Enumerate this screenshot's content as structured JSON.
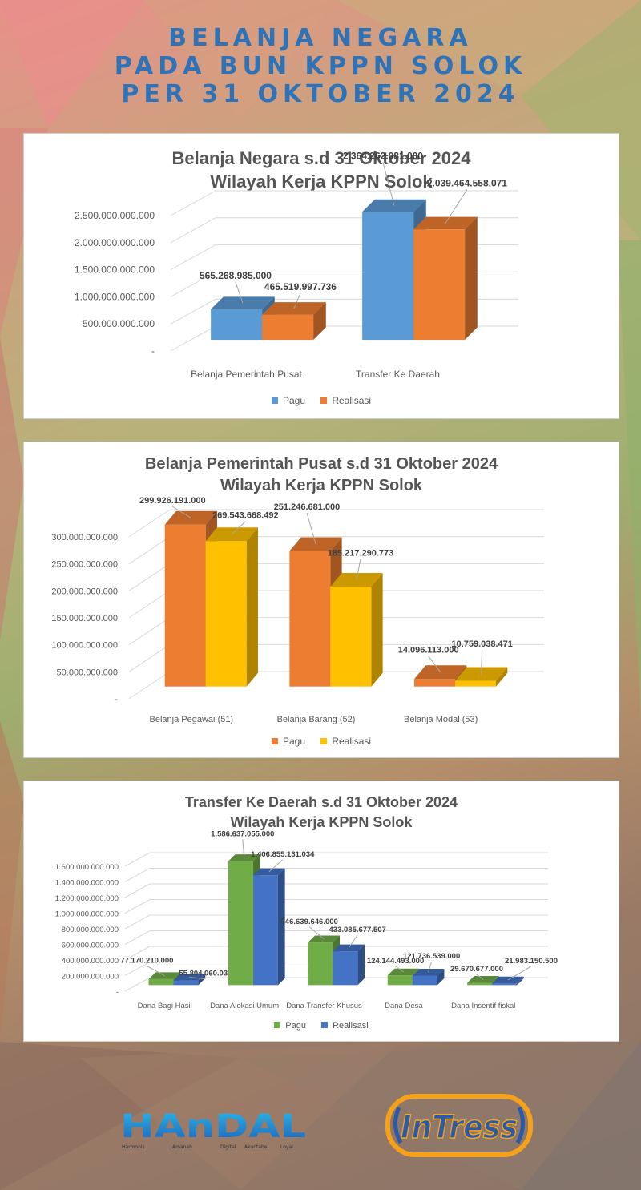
{
  "header": {
    "line1": "BELANJA NEGARA",
    "line2": "PADA BUN KPPN SOLOK",
    "line3": "PER 31 OKTOBER 2024"
  },
  "chart_data": [
    {
      "type": "bar",
      "title": "Belanja Negara s.d 31 Oktober 2024",
      "subtitle": "Wilayah Kerja KPPN Solok",
      "categories": [
        "Belanja Pemerintah Pusat",
        "Transfer Ke Daerah"
      ],
      "series": [
        {
          "name": "Pagu",
          "values": [
            565268985000,
            2364262081000
          ],
          "labels": [
            "565.268.985.000",
            "2.364.262.081.000"
          ],
          "color": "#5b9bd5"
        },
        {
          "name": "Realisasi",
          "values": [
            465519997736,
            2039464558071
          ],
          "labels": [
            "465.519.997.736",
            "2.039.464.558.071"
          ],
          "color": "#ed7d31"
        }
      ],
      "ylim": [
        0,
        2500000000000
      ],
      "yticks": [
        "-",
        "500.000.000.000",
        "1.000.000.000.000",
        "1.500.000.000.000",
        "2.000.000.000.000",
        "2.500.000.000.000"
      ],
      "grid": true,
      "legend": "bottom"
    },
    {
      "type": "bar",
      "title": "Belanja Pemerintah Pusat s.d 31 Oktober 2024",
      "subtitle": "Wilayah Kerja KPPN Solok",
      "categories": [
        "Belanja Pegawai (51)",
        "Belanja Barang (52)",
        "Belanja Modal (53)"
      ],
      "series": [
        {
          "name": "Pagu",
          "values": [
            299926191000,
            251246681000,
            14096113000
          ],
          "labels": [
            "299.926.191.000",
            "251.246.681.000",
            "14.096.113.000"
          ],
          "color": "#ed7d31"
        },
        {
          "name": "Realisasi",
          "values": [
            269543668492,
            185217290773,
            10759038471
          ],
          "labels": [
            "269.543.668.492",
            "185.217.290.773",
            "10.759.038.471"
          ],
          "color": "#ffc000"
        }
      ],
      "ylim": [
        0,
        300000000000
      ],
      "yticks": [
        "-",
        "50.000.000.000",
        "100.000.000.000",
        "150.000.000.000",
        "200.000.000.000",
        "250.000.000.000",
        "300.000.000.000"
      ],
      "grid": true,
      "legend": "bottom"
    },
    {
      "type": "bar",
      "title": "Transfer Ke Daerah s.d 31 Oktober 2024",
      "subtitle": "Wilayah Kerja KPPN Solok",
      "categories": [
        "Dana Bagi Hasil",
        "Dana Alokasi Umum",
        "Dana Transfer Khusus",
        "Dana Desa",
        "Dana Insentif fiskal"
      ],
      "series": [
        {
          "name": "Pagu",
          "values": [
            77170210000,
            1586637055000,
            546639646000,
            124144493000,
            29670677000
          ],
          "labels": [
            "77.170.210.000",
            "1.586.637.055.000",
            "546.639.646.000",
            "124.144.493.000",
            "29.670.677.000"
          ],
          "color": "#70ad47"
        },
        {
          "name": "Realisasi",
          "values": [
            55804060030,
            1406855131034,
            433085677507,
            121736539000,
            21983150500
          ],
          "labels": [
            "55.804.060.030",
            "1.406.855.131.034",
            "433.085.677.507",
            "121.736.539.000",
            "21.983.150.500"
          ],
          "color": "#4472c4"
        }
      ],
      "ylim": [
        0,
        1600000000000
      ],
      "yticks": [
        "-",
        "200.000.000.000",
        "400.000.000.000",
        "600.000.000.000",
        "800.000.000.000",
        "1.000.000.000.000",
        "1.200.000.000.000",
        "1.400.000.000.000",
        "1.600.000.000.000"
      ],
      "grid": true,
      "legend": "bottom"
    }
  ],
  "logos": {
    "handal": {
      "wordmark": "HAnDAL",
      "words": [
        "Harmonis",
        "Amanah",
        "Digital",
        "Akuntabel",
        "Loyal"
      ]
    },
    "intress": {
      "wordmark": "InTress"
    }
  }
}
